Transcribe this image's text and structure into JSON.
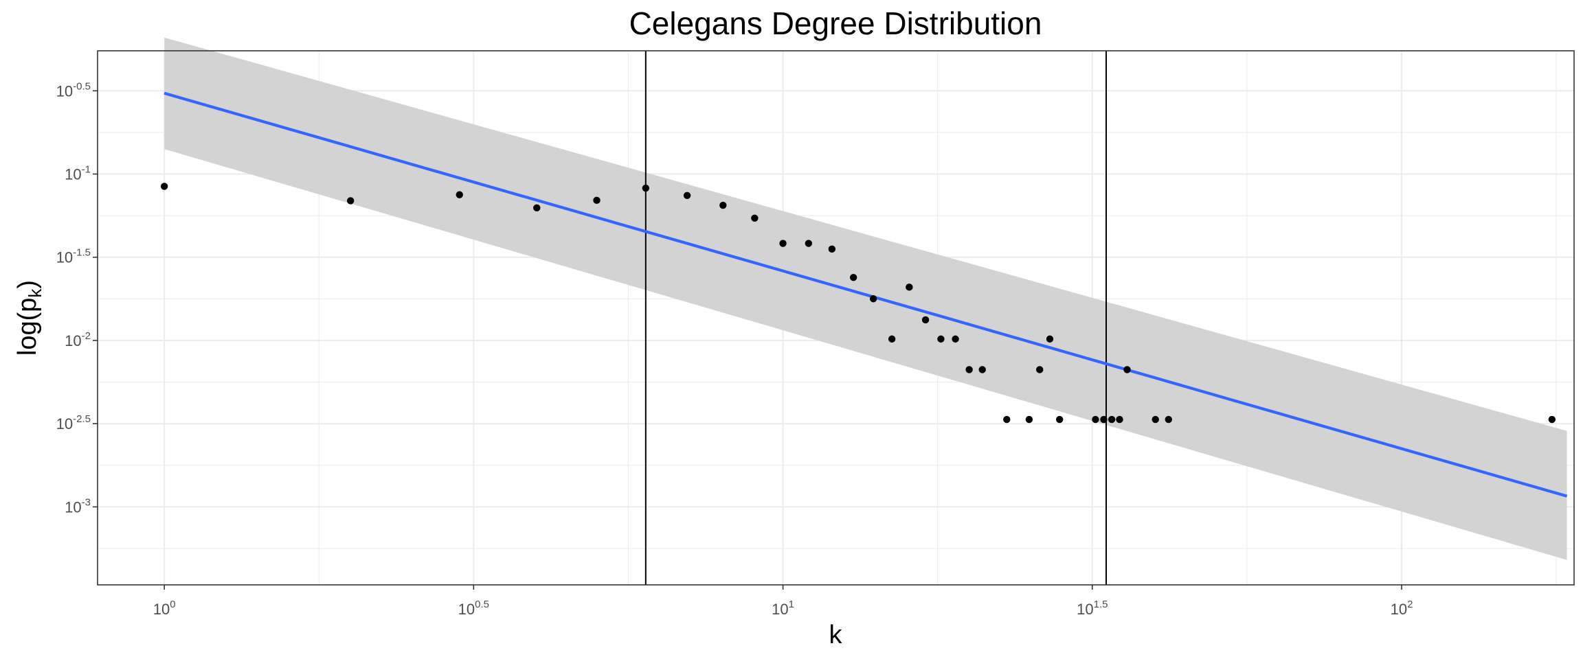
{
  "chart_data": {
    "type": "scatter",
    "title": "Celegans Degree Distribution",
    "xlabel": "k",
    "ylabel_main": "log(p",
    "ylabel_sub": "k",
    "ylabel_close": ")",
    "x_scale": "log10",
    "y_scale": "log10",
    "xlim": [
      0.78,
      190
    ],
    "ylim": [
      0.00034,
      0.55
    ],
    "grid": true,
    "legend": "none",
    "x_ticks": [
      {
        "base": "10",
        "exp": "0",
        "value": 1
      },
      {
        "base": "10",
        "exp": "0.5",
        "value": 3.162
      },
      {
        "base": "10",
        "exp": "1",
        "value": 10
      },
      {
        "base": "10",
        "exp": "1.5",
        "value": 31.62
      },
      {
        "base": "10",
        "exp": "2",
        "value": 100
      }
    ],
    "y_ticks": [
      {
        "base": "10",
        "exp": "-0.5",
        "value": 0.3162
      },
      {
        "base": "10",
        "exp": "-1",
        "value": 0.1
      },
      {
        "base": "10",
        "exp": "-1.5",
        "value": 0.03162
      },
      {
        "base": "10",
        "exp": "-2",
        "value": 0.01
      },
      {
        "base": "10",
        "exp": "-2.5",
        "value": 0.003162
      },
      {
        "base": "10",
        "exp": "-3",
        "value": 0.001
      }
    ],
    "points": [
      {
        "x": 1,
        "y": 0.0843
      },
      {
        "x": 2,
        "y": 0.0691
      },
      {
        "x": 3,
        "y": 0.0751
      },
      {
        "x": 4,
        "y": 0.0626
      },
      {
        "x": 5,
        "y": 0.0695
      },
      {
        "x": 6,
        "y": 0.0823
      },
      {
        "x": 7,
        "y": 0.0743
      },
      {
        "x": 8,
        "y": 0.0649
      },
      {
        "x": 9,
        "y": 0.0543
      },
      {
        "x": 10,
        "y": 0.0383
      },
      {
        "x": 11,
        "y": 0.0383
      },
      {
        "x": 12,
        "y": 0.0354
      },
      {
        "x": 13,
        "y": 0.0239
      },
      {
        "x": 14,
        "y": 0.0178
      },
      {
        "x": 15,
        "y": 0.0102
      },
      {
        "x": 16,
        "y": 0.0209
      },
      {
        "x": 17,
        "y": 0.0133
      },
      {
        "x": 18,
        "y": 0.0102
      },
      {
        "x": 19,
        "y": 0.0102
      },
      {
        "x": 20,
        "y": 0.00668
      },
      {
        "x": 21,
        "y": 0.00668
      },
      {
        "x": 23,
        "y": 0.00335
      },
      {
        "x": 25,
        "y": 0.00335
      },
      {
        "x": 26,
        "y": 0.00668
      },
      {
        "x": 27,
        "y": 0.0102
      },
      {
        "x": 28,
        "y": 0.00335
      },
      {
        "x": 32,
        "y": 0.00335
      },
      {
        "x": 33,
        "y": 0.00335
      },
      {
        "x": 34,
        "y": 0.00335
      },
      {
        "x": 35,
        "y": 0.00335
      },
      {
        "x": 36,
        "y": 0.00668
      },
      {
        "x": 40,
        "y": 0.00335
      },
      {
        "x": 42,
        "y": 0.00335
      },
      {
        "x": 175,
        "y": 0.00335
      }
    ],
    "fit_line": {
      "type": "lm",
      "color": "#3366FF",
      "x_range": [
        1,
        185
      ],
      "y_start": 0.3059,
      "y_end": 0.00116,
      "ci_color": "#d3d3d3",
      "ci_lower_start": 0.1413,
      "ci_upper_start": 0.6606,
      "ci_lower_end": 0.00048,
      "ci_upper_end": 0.00286
    },
    "vlines": [
      {
        "x": 6.0,
        "color": "#000000"
      },
      {
        "x": 33.3,
        "color": "#000000"
      }
    ],
    "point_color": "#000000",
    "panel_border": "#333333",
    "grid_color": "#ebebeb"
  }
}
